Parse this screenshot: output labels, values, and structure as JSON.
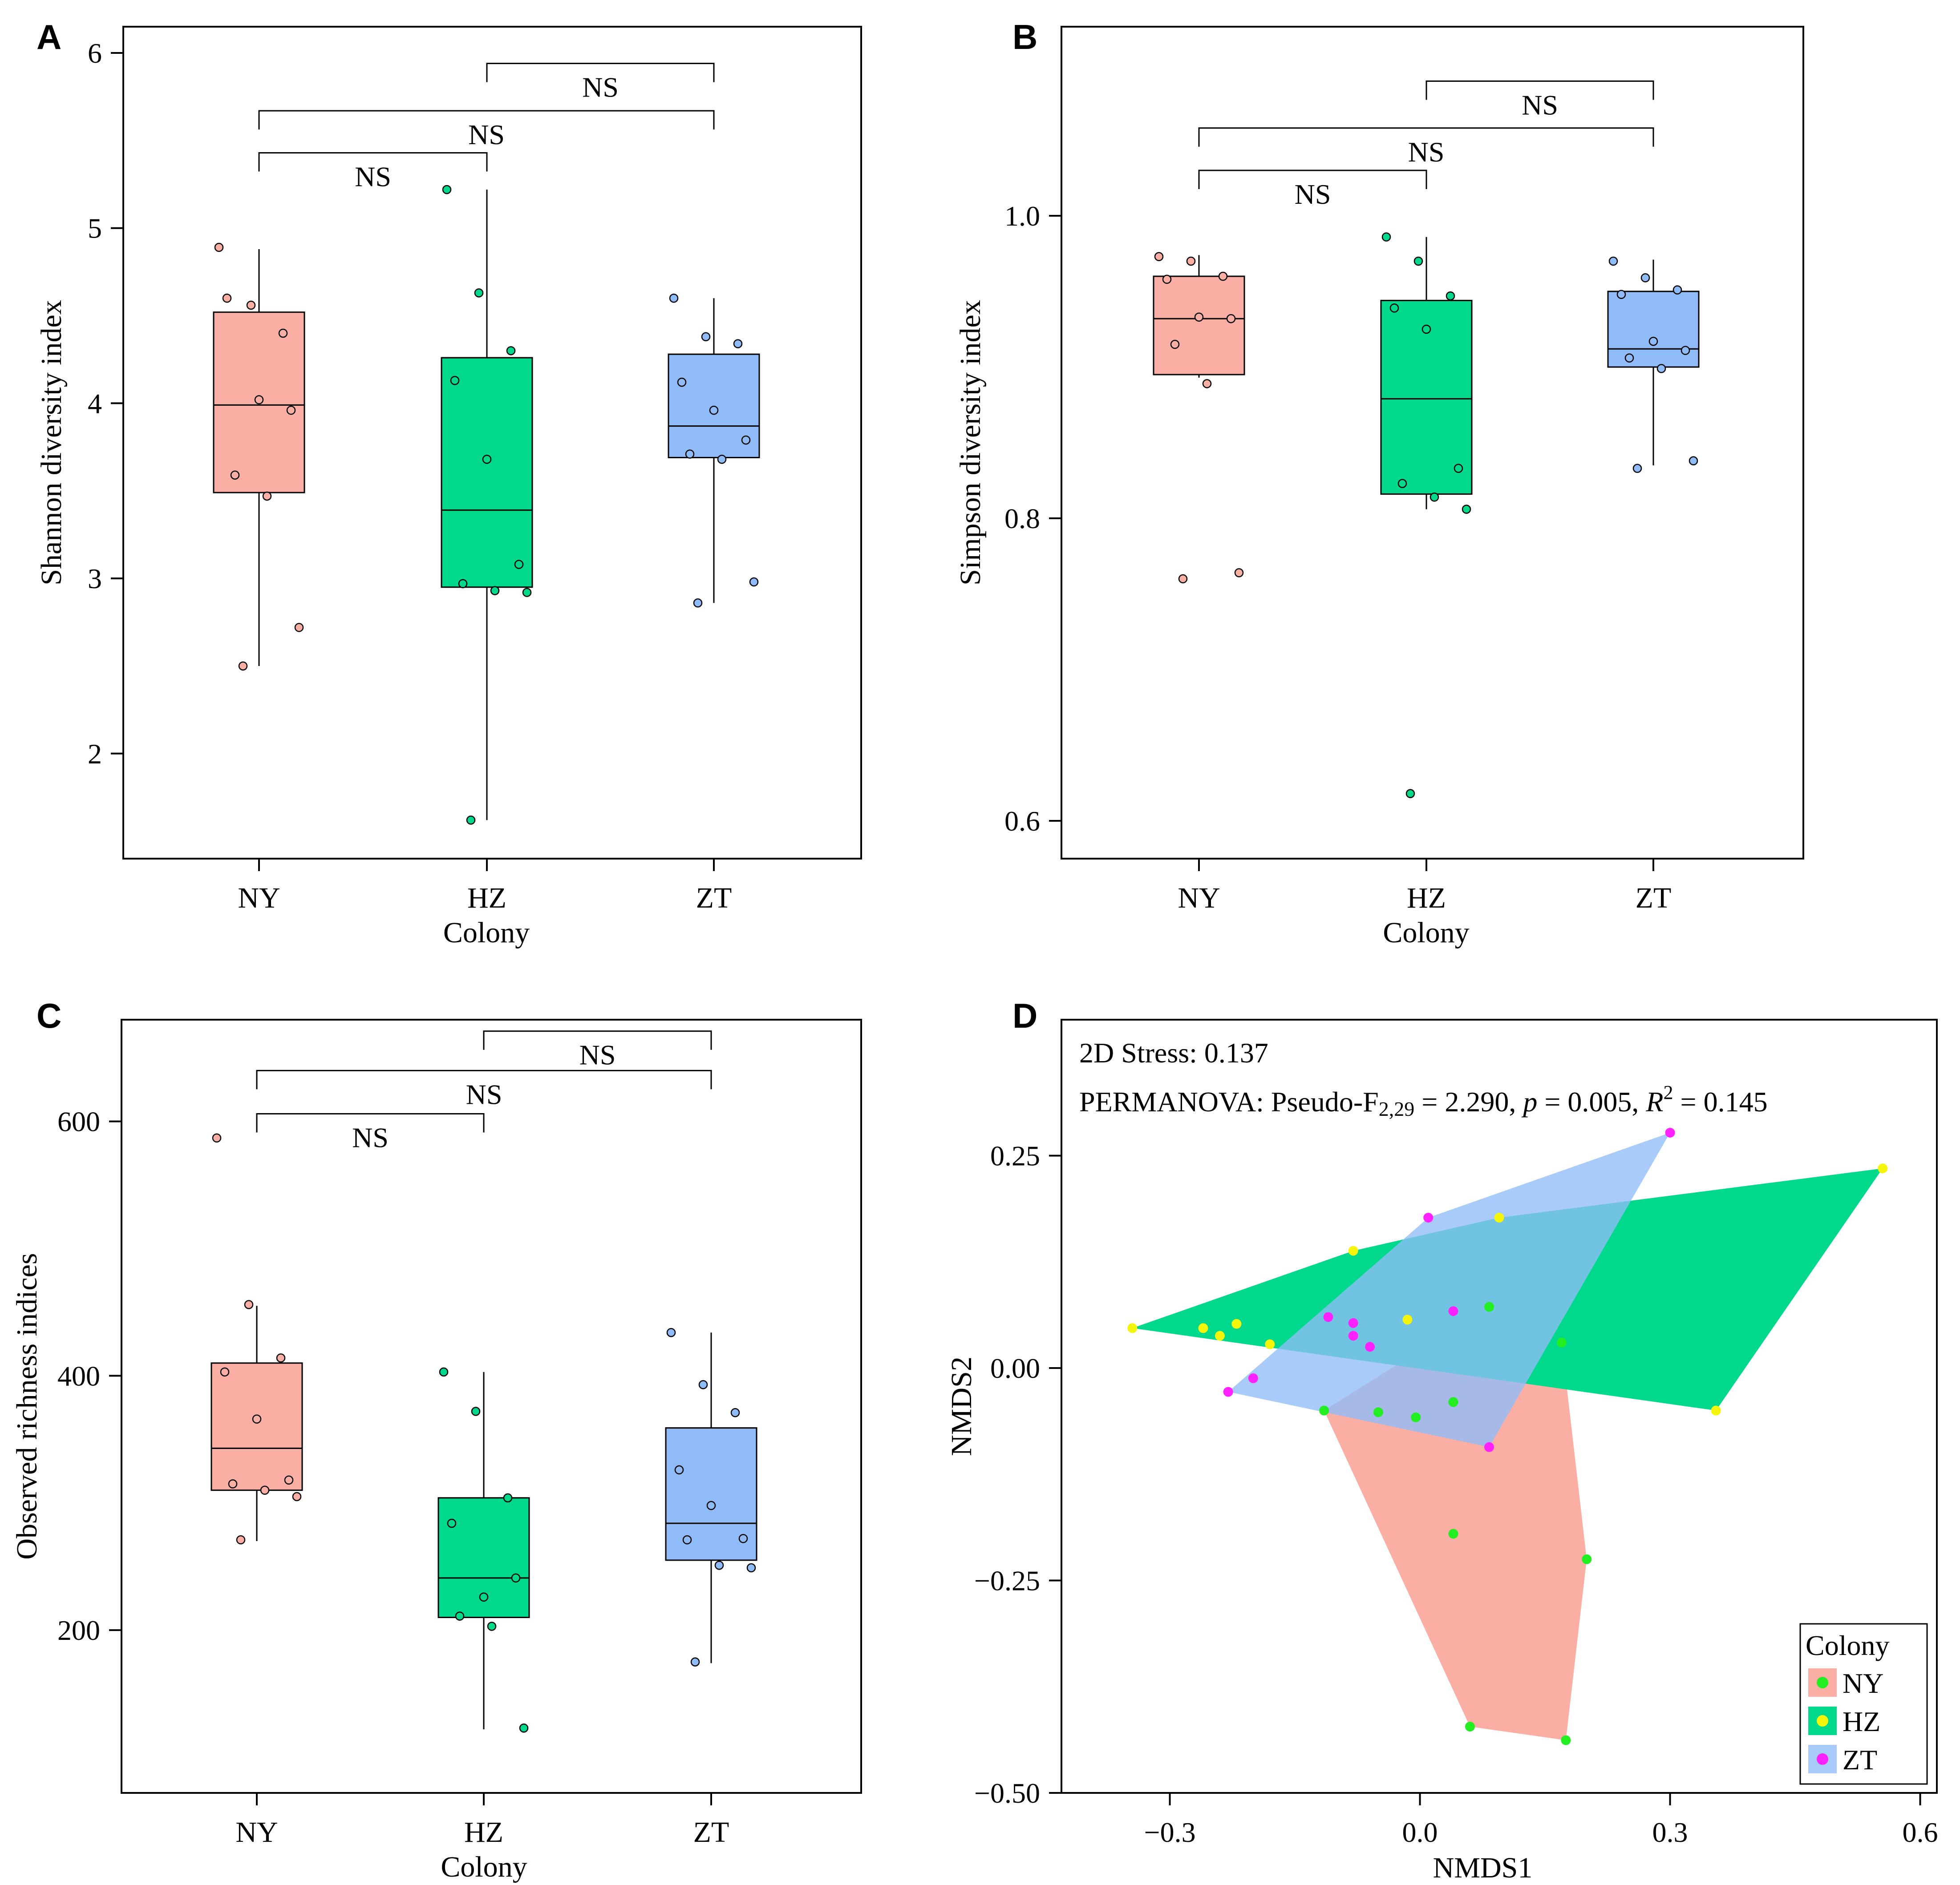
{
  "chart_data": [
    {
      "type": "box",
      "panel": "A",
      "xlabel": "Colony",
      "ylabel": "Shannon diversity index",
      "ylim": [
        1.4,
        6.15
      ],
      "yticks": [
        2,
        3,
        4,
        5,
        6
      ],
      "categories": [
        "NY",
        "HZ",
        "ZT"
      ],
      "colors": [
        "#fbafa4",
        "#00d98c",
        "#8fbcf8"
      ],
      "boxes": [
        {
          "category": "NY",
          "whisker_low": 2.5,
          "q1": 3.49,
          "median": 3.99,
          "q3": 4.52,
          "whisker_high": 4.88,
          "points": [
            4.89,
            4.56,
            4.4,
            4.6,
            4.02,
            3.96,
            3.59,
            3.47,
            2.72,
            2.5
          ]
        },
        {
          "category": "HZ",
          "whisker_low": 1.62,
          "q1": 2.95,
          "median": 3.39,
          "q3": 4.26,
          "whisker_high": 5.22,
          "points": [
            5.22,
            4.63,
            4.3,
            4.13,
            3.68,
            3.08,
            2.97,
            2.93,
            2.92,
            1.62
          ]
        },
        {
          "category": "ZT",
          "whisker_low": 2.86,
          "q1": 3.69,
          "median": 3.87,
          "q3": 4.28,
          "whisker_high": 4.6,
          "points": [
            4.6,
            4.38,
            4.34,
            4.12,
            3.96,
            3.79,
            3.71,
            3.68,
            2.98,
            2.86
          ]
        }
      ],
      "comparisons": [
        {
          "from": "NY",
          "to": "HZ",
          "label": "NS",
          "y": 5.43
        },
        {
          "from": "NY",
          "to": "ZT",
          "label": "NS",
          "y": 5.67
        },
        {
          "from": "HZ",
          "to": "ZT",
          "label": "NS",
          "y": 5.94
        }
      ]
    },
    {
      "type": "box",
      "panel": "B",
      "xlabel": "Colony",
      "ylabel": "Simpson diversity index",
      "ylim": [
        0.575,
        1.125
      ],
      "yticks": [
        0.6,
        0.8,
        1.0
      ],
      "ytick_labels": [
        "0.6",
        "0.8",
        "1.0"
      ],
      "categories": [
        "NY",
        "HZ",
        "ZT"
      ],
      "colors": [
        "#fbafa4",
        "#00d98c",
        "#8fbcf8"
      ],
      "boxes": [
        {
          "category": "NY",
          "whisker_low": 0.893,
          "q1": 0.895,
          "median": 0.932,
          "q3": 0.96,
          "whisker_high": 0.974,
          "points": [
            0.973,
            0.97,
            0.96,
            0.958,
            0.933,
            0.932,
            0.915,
            0.889,
            0.764,
            0.76
          ]
        },
        {
          "category": "HZ",
          "whisker_low": 0.806,
          "q1": 0.816,
          "median": 0.879,
          "q3": 0.944,
          "whisker_high": 0.986,
          "points": [
            0.986,
            0.97,
            0.947,
            0.939,
            0.925,
            0.833,
            0.823,
            0.814,
            0.806,
            0.618
          ]
        },
        {
          "category": "ZT",
          "whisker_low": 0.835,
          "q1": 0.9,
          "median": 0.912,
          "q3": 0.95,
          "whisker_high": 0.971,
          "points": [
            0.97,
            0.959,
            0.951,
            0.948,
            0.917,
            0.911,
            0.906,
            0.899,
            0.838,
            0.833
          ]
        }
      ],
      "comparisons": [
        {
          "from": "NY",
          "to": "HZ",
          "label": "NS",
          "y": 1.03
        },
        {
          "from": "NY",
          "to": "ZT",
          "label": "NS",
          "y": 1.058
        },
        {
          "from": "HZ",
          "to": "ZT",
          "label": "NS",
          "y": 1.089
        }
      ]
    },
    {
      "type": "box",
      "panel": "C",
      "xlabel": "Colony",
      "ylabel": "Observed richness indices",
      "ylim": [
        72,
        680
      ],
      "yticks": [
        200,
        400,
        600
      ],
      "categories": [
        "NY",
        "HZ",
        "ZT"
      ],
      "colors": [
        "#fbafa4",
        "#00d98c",
        "#8fbcf8"
      ],
      "boxes": [
        {
          "category": "NY",
          "whisker_low": 270,
          "q1": 310,
          "median": 343,
          "q3": 410,
          "whisker_high": 455,
          "points": [
            587,
            456,
            414,
            403,
            366,
            318,
            315,
            310,
            305,
            271
          ]
        },
        {
          "category": "HZ",
          "whisker_low": 122,
          "q1": 210,
          "median": 241,
          "q3": 304,
          "whisker_high": 403,
          "points": [
            403,
            372,
            304,
            284,
            226,
            241,
            211,
            203,
            123
          ]
        },
        {
          "category": "ZT",
          "whisker_low": 174,
          "q1": 255,
          "median": 284,
          "q3": 359,
          "whisker_high": 434,
          "points": [
            434,
            393,
            371,
            326,
            298,
            272,
            271,
            251,
            249,
            175
          ]
        }
      ],
      "comparisons": [
        {
          "from": "NY",
          "to": "HZ",
          "label": "NS",
          "y": 606
        },
        {
          "from": "NY",
          "to": "ZT",
          "label": "NS",
          "y": 640
        },
        {
          "from": "HZ",
          "to": "ZT",
          "label": "NS",
          "y": 671
        }
      ]
    },
    {
      "type": "scatter",
      "panel": "D",
      "xlabel": "NMDS1",
      "ylabel": "NMDS2",
      "xlim": [
        -0.43,
        0.62
      ],
      "ylim": [
        -0.5,
        0.41
      ],
      "xticks": [
        -0.3,
        0.0,
        0.3,
        0.6
      ],
      "xtick_labels": [
        "−0.3",
        "0.0",
        "0.3",
        "0.6"
      ],
      "yticks": [
        -0.5,
        -0.25,
        0.0,
        0.25
      ],
      "ytick_labels": [
        "−0.50",
        "−0.25",
        "0.00",
        "0.25"
      ],
      "annotations": {
        "stress": "2D Stress: 0.137",
        "permanova_prefix": "PERMANOVA: Pseudo-F",
        "permanova_sub": "2,29",
        "permanova_f": " = 2.290, ",
        "permanova_p_label": "p",
        "permanova_p": " = 0.005, ",
        "permanova_r_label": "R",
        "permanova_r_sup": "2",
        "permanova_r": " = 0.145"
      },
      "legend": {
        "title": "Colony",
        "position": "bottom-right"
      },
      "series": [
        {
          "name": "NY",
          "point_color": "#22ee22",
          "hull_color": "#fbafa4",
          "points": [
            [
              -0.115,
              -0.05
            ],
            [
              -0.05,
              -0.052
            ],
            [
              -0.005,
              -0.058
            ],
            [
              0.04,
              -0.04
            ],
            [
              0.083,
              0.072
            ],
            [
              0.17,
              0.03
            ],
            [
              0.04,
              -0.195
            ],
            [
              0.2,
              -0.225
            ],
            [
              0.06,
              -0.422
            ],
            [
              0.175,
              -0.438
            ]
          ]
        },
        {
          "name": "HZ",
          "point_color": "#f5f50a",
          "hull_color": "#00d98c",
          "points": [
            [
              -0.345,
              0.047
            ],
            [
              -0.26,
              0.047
            ],
            [
              -0.24,
              0.038
            ],
            [
              -0.22,
              0.052
            ],
            [
              -0.18,
              0.028
            ],
            [
              -0.08,
              0.138
            ],
            [
              -0.015,
              0.057
            ],
            [
              0.095,
              0.177
            ],
            [
              0.355,
              -0.05
            ],
            [
              0.555,
              0.235
            ]
          ]
        },
        {
          "name": "ZT",
          "point_color": "#ff22ff",
          "hull_color": "#8fbcf8",
          "points": [
            [
              -0.23,
              -0.028
            ],
            [
              -0.2,
              -0.012
            ],
            [
              -0.11,
              0.06
            ],
            [
              -0.08,
              0.053
            ],
            [
              -0.08,
              0.038
            ],
            [
              -0.06,
              0.025
            ],
            [
              0.01,
              0.177
            ],
            [
              0.04,
              0.067
            ],
            [
              0.083,
              -0.093
            ],
            [
              0.3,
              0.277
            ]
          ]
        }
      ]
    }
  ]
}
